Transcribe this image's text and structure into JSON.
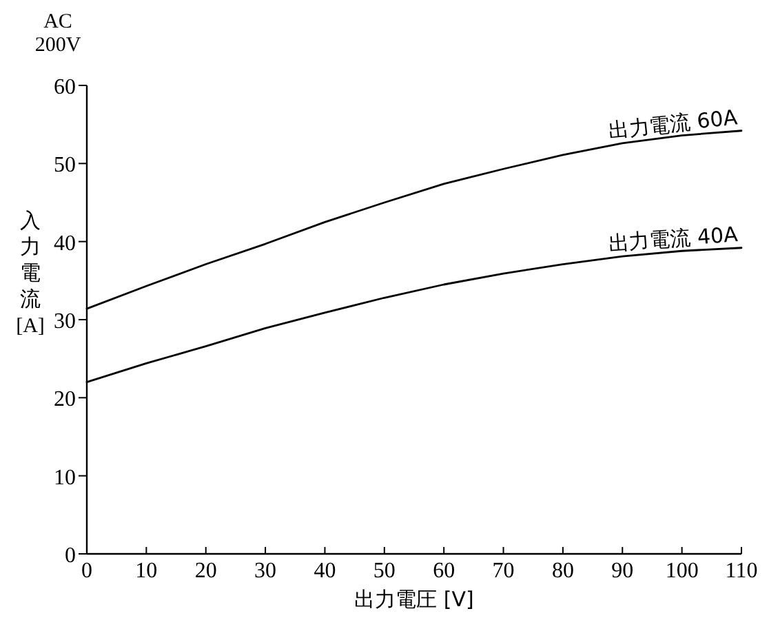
{
  "chart_data": {
    "type": "line",
    "xlabel": "出力電圧 [V]",
    "ylabel": "入力電流 [A]",
    "annotations": [
      "AC 200V"
    ],
    "x": [
      0,
      10,
      20,
      30,
      40,
      50,
      60,
      70,
      80,
      90,
      100,
      110
    ],
    "series": [
      {
        "name": "出力電流 60A",
        "color": "#000000",
        "values": [
          31.4,
          34.3,
          37.1,
          39.7,
          42.5,
          45.0,
          47.4,
          49.3,
          51.1,
          52.6,
          53.6,
          54.2
        ]
      },
      {
        "name": "出力電流 40A",
        "color": "#000000",
        "values": [
          22.0,
          24.4,
          26.6,
          28.9,
          30.9,
          32.8,
          34.5,
          35.9,
          37.1,
          38.1,
          38.8,
          39.2
        ]
      }
    ],
    "xlim": [
      0,
      110
    ],
    "xticks": [
      0,
      10,
      20,
      30,
      40,
      50,
      60,
      70,
      80,
      90,
      100,
      110
    ],
    "ylim": [
      0,
      60
    ],
    "yticks": [
      0,
      10,
      20,
      30,
      40,
      50,
      60
    ],
    "grid": false,
    "marker": "none",
    "line_style": "solid"
  }
}
